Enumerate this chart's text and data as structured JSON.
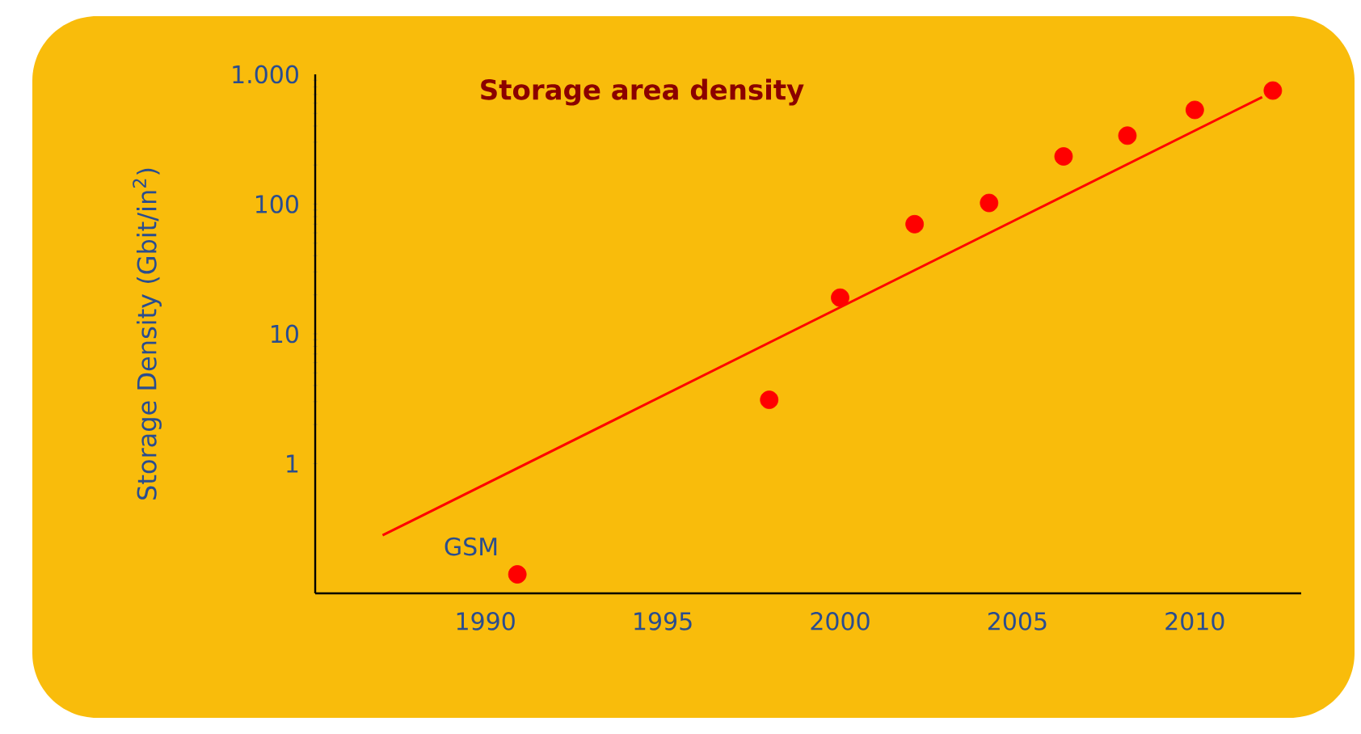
{
  "chart_data": {
    "type": "scatter",
    "title": "Storage area density",
    "ylabel": "Storage Density (Gbit/in$^{2}$)",
    "log": true,
    "xlim": [
      1985.2,
      2013.0
    ],
    "ylim": [
      0.1,
      1000
    ],
    "xticks": [
      1990,
      1995,
      2000,
      2005,
      2010
    ],
    "yticks": [
      1,
      10,
      100,
      {
        "value": 1000,
        "label": "1.000"
      }
    ],
    "annotations": [
      {
        "text": "GSM",
        "x": 1990.9,
        "y": 0.14
      }
    ],
    "series": [
      {
        "color": "#ff0000",
        "marker": "circle",
        "x": [
          1990.9,
          1998.0,
          2000.0,
          2002.1,
          2004.2,
          2006.3,
          2008.1,
          2010.0,
          2012.2
        ],
        "values": [
          0.14,
          3.1,
          19,
          70,
          102,
          233,
          337,
          532,
          750
        ]
      },
      {
        "type": "line",
        "color": "#ff0000",
        "marker": "none",
        "line_style": "solid",
        "x": [
          1987.1,
          2011.9
        ],
        "values": [
          0.28,
          668
        ]
      }
    ]
  }
}
